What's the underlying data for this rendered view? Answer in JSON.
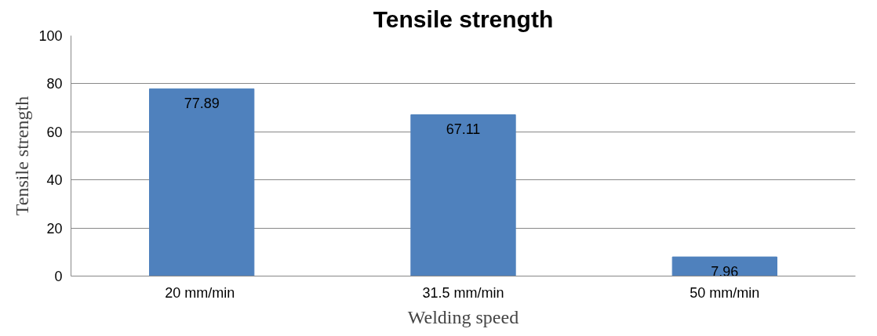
{
  "chart_data": {
    "type": "bar",
    "title": "Tensile strength",
    "xlabel": "Welding speed",
    "ylabel": "Tensile strength",
    "categories": [
      "20  mm/min",
      "31.5 mm/min",
      "50 mm/min"
    ],
    "values": [
      77.89,
      67.11,
      7.96
    ],
    "color": "#4f81bd",
    "ylim": [
      0,
      100
    ],
    "yticks": [
      0,
      20,
      40,
      60,
      80,
      100
    ],
    "grid": "y",
    "data_labels": true
  }
}
